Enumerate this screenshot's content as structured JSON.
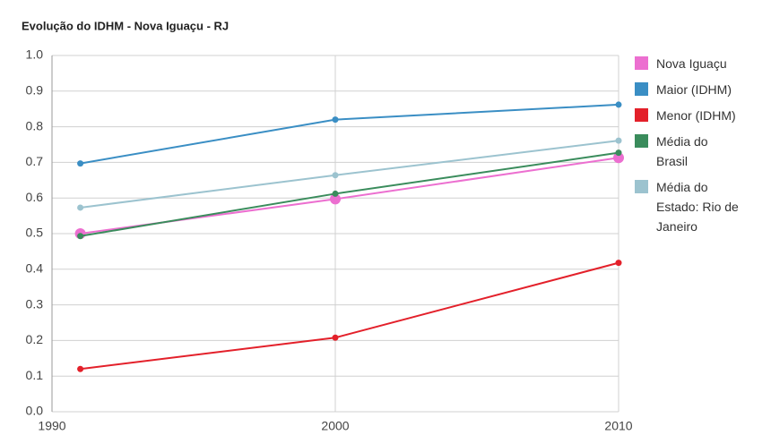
{
  "chart_data": {
    "type": "line",
    "title": "Evolução do IDHM - Nova Iguaçu - RJ",
    "x": [
      1991,
      2000,
      2010
    ],
    "series": [
      {
        "name": "Nova Iguaçu",
        "color": "#ec6fd0",
        "values": [
          0.5,
          0.597,
          0.713
        ]
      },
      {
        "name": "Maior (IDHM)",
        "color": "#3a8ec4",
        "values": [
          0.697,
          0.82,
          0.862
        ]
      },
      {
        "name": "Menor (IDHM)",
        "color": "#e3202a",
        "values": [
          0.12,
          0.208,
          0.418
        ]
      },
      {
        "name": "Média do Brasil",
        "color": "#3a8c5c",
        "values": [
          0.493,
          0.612,
          0.727
        ]
      },
      {
        "name": "Média do Estado: Rio de Janeiro",
        "color": "#9cc3cf",
        "values": [
          0.573,
          0.664,
          0.761
        ]
      }
    ],
    "xlim": [
      1990,
      2010
    ],
    "xticks": [
      1990,
      2000,
      2010
    ],
    "ylim": [
      0,
      1
    ],
    "yticks": [
      {
        "value": 0,
        "label": "0.0"
      },
      0.1,
      0.2,
      0.3,
      0.4,
      0.5,
      0.6,
      0.7,
      0.8,
      0.9,
      {
        "value": 1,
        "label": "1.0"
      }
    ],
    "grid": true,
    "legend": "right"
  }
}
